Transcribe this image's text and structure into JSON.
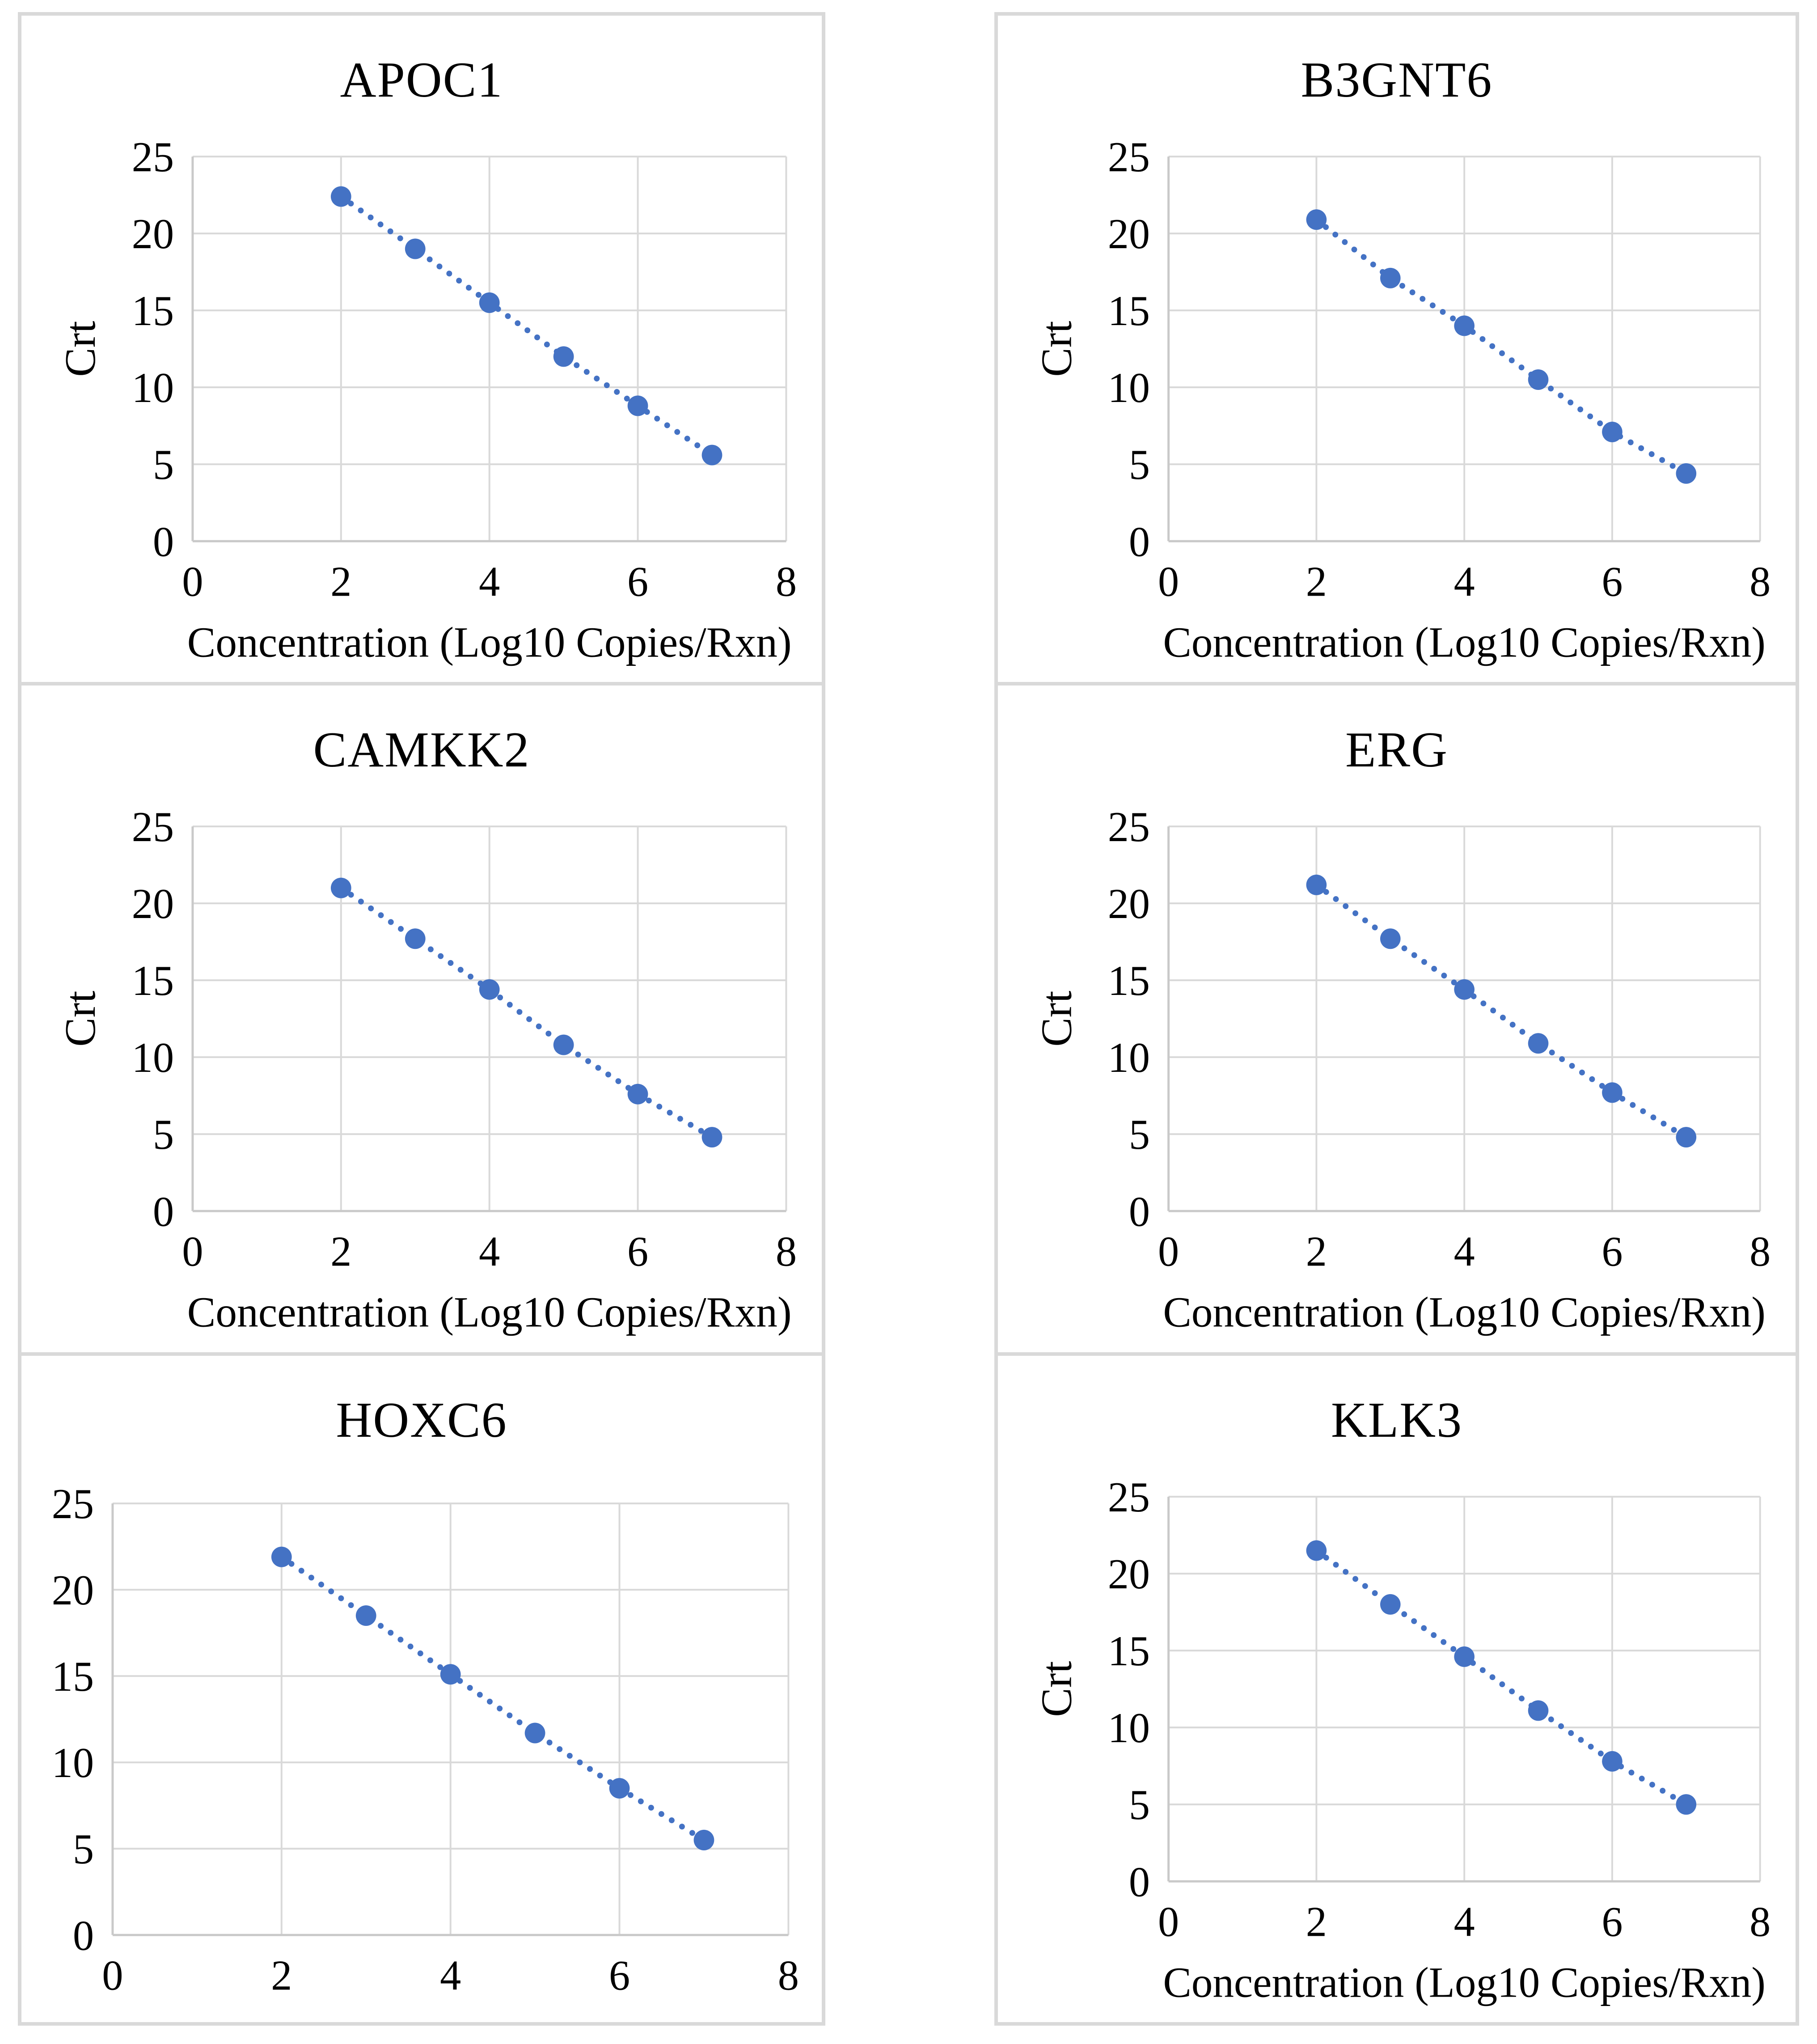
{
  "figure": {
    "background": "#ffffff",
    "panel_border_color": "#d9d9d9",
    "grid_color": "#d9d9d9",
    "axis_color": "#c9c9c9",
    "marker_color": "#4472c4",
    "text_color": "#000000"
  },
  "chart_data": [
    {
      "type": "scatter",
      "title": "APOC1",
      "x": [
        2,
        3,
        4,
        5,
        6,
        7
      ],
      "y": [
        22.4,
        19.0,
        15.5,
        12.0,
        8.8,
        5.6
      ],
      "xlabel": "Concentration (Log10 Copies/Rxn)",
      "ylabel": "Crt",
      "xlim": [
        0,
        8
      ],
      "ylim": [
        0,
        25
      ],
      "xticks": [
        0,
        2,
        4,
        6,
        8
      ],
      "yticks": [
        0,
        5,
        10,
        15,
        20,
        25
      ],
      "grid": true,
      "trendline": "dotted",
      "marker": "circle",
      "show_axis_titles": true
    },
    {
      "type": "scatter",
      "title": "B3GNT6",
      "x": [
        2,
        3,
        4,
        5,
        6,
        7
      ],
      "y": [
        20.9,
        17.1,
        14.0,
        10.5,
        7.1,
        4.4
      ],
      "xlabel": "Concentration (Log10 Copies/Rxn)",
      "ylabel": "Crt",
      "xlim": [
        0,
        8
      ],
      "ylim": [
        0,
        25
      ],
      "xticks": [
        0,
        2,
        4,
        6,
        8
      ],
      "yticks": [
        0,
        5,
        10,
        15,
        20,
        25
      ],
      "grid": true,
      "trendline": "dotted",
      "marker": "circle",
      "show_axis_titles": true
    },
    {
      "type": "scatter",
      "title": "CAMKK2",
      "x": [
        2,
        3,
        4,
        5,
        6,
        7
      ],
      "y": [
        21.0,
        17.7,
        14.4,
        10.8,
        7.6,
        4.8
      ],
      "xlabel": "Concentration (Log10 Copies/Rxn)",
      "ylabel": "Crt",
      "xlim": [
        0,
        8
      ],
      "ylim": [
        0,
        25
      ],
      "xticks": [
        0,
        2,
        4,
        6,
        8
      ],
      "yticks": [
        0,
        5,
        10,
        15,
        20,
        25
      ],
      "grid": true,
      "trendline": "dotted",
      "marker": "circle",
      "show_axis_titles": true
    },
    {
      "type": "scatter",
      "title": "ERG",
      "x": [
        2,
        3,
        4,
        5,
        6,
        7
      ],
      "y": [
        21.2,
        17.7,
        14.4,
        10.9,
        7.7,
        4.8
      ],
      "xlabel": "Concentration (Log10 Copies/Rxn)",
      "ylabel": "Crt",
      "xlim": [
        0,
        8
      ],
      "ylim": [
        0,
        25
      ],
      "xticks": [
        0,
        2,
        4,
        6,
        8
      ],
      "yticks": [
        0,
        5,
        10,
        15,
        20,
        25
      ],
      "grid": true,
      "trendline": "dotted",
      "marker": "circle",
      "show_axis_titles": true
    },
    {
      "type": "scatter",
      "title": "HOXC6",
      "x": [
        2,
        3,
        4,
        5,
        6,
        7
      ],
      "y": [
        21.9,
        18.5,
        15.1,
        11.7,
        8.5,
        5.5
      ],
      "xlabel": "",
      "ylabel": "",
      "xlim": [
        0,
        8
      ],
      "ylim": [
        0,
        25
      ],
      "xticks": [
        0,
        2,
        4,
        6,
        8
      ],
      "yticks": [
        0,
        5,
        10,
        15,
        20,
        25
      ],
      "grid": true,
      "trendline": "dotted",
      "marker": "circle",
      "show_axis_titles": false
    },
    {
      "type": "scatter",
      "title": "KLK3",
      "x": [
        2,
        3,
        4,
        5,
        6,
        7
      ],
      "y": [
        21.5,
        18.0,
        14.6,
        11.1,
        7.8,
        5.0
      ],
      "xlabel": "Concentration (Log10 Copies/Rxn)",
      "ylabel": "Crt",
      "xlim": [
        0,
        8
      ],
      "ylim": [
        0,
        25
      ],
      "xticks": [
        0,
        2,
        4,
        6,
        8
      ],
      "yticks": [
        0,
        5,
        10,
        15,
        20,
        25
      ],
      "grid": true,
      "trendline": "dotted",
      "marker": "circle",
      "show_axis_titles": true
    }
  ]
}
